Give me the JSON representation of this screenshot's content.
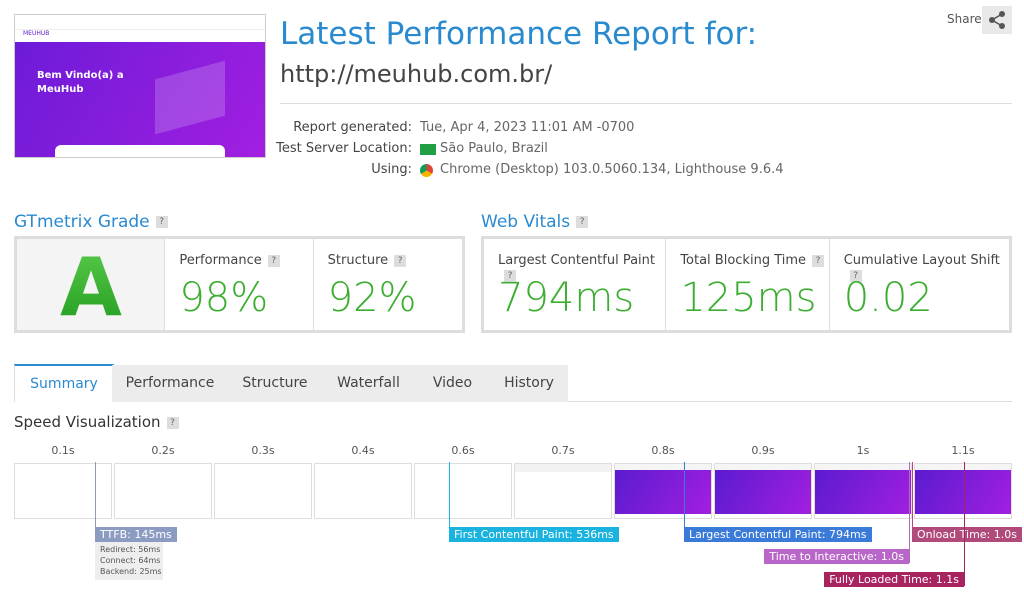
{
  "header": {
    "title": "Latest Performance Report for:",
    "url": "http://meuhub.com.br/",
    "share": "Share",
    "help": "?"
  },
  "thumbnail": {
    "heading": "Bem Vindo(a) a MeuHub",
    "logo": "MEUHUB"
  },
  "report": {
    "rows": [
      {
        "label": "Report generated:",
        "value": "Tue, Apr 4, 2023 11:01 AM -0700"
      },
      {
        "label": "Test Server Location:",
        "value": "São Paulo, Brazil"
      },
      {
        "label": "Using:",
        "value": "Chrome (Desktop) 103.0.5060.134, Lighthouse 9.6.4"
      }
    ]
  },
  "grade": {
    "heading": "GTmetrix Grade",
    "letter": "A",
    "metrics": [
      {
        "label": "Performance",
        "value": "98%"
      },
      {
        "label": "Structure",
        "value": "92%"
      }
    ]
  },
  "web_vitals": {
    "heading": "Web Vitals",
    "metrics": [
      {
        "label": "Largest Contentful Paint",
        "value": "794ms"
      },
      {
        "label": "Total Blocking Time",
        "value": "125ms"
      },
      {
        "label": "Cumulative Layout Shift",
        "value": "0.02"
      }
    ]
  },
  "tabs": [
    "Summary",
    "Performance",
    "Structure",
    "Waterfall",
    "Video",
    "History"
  ],
  "speed": {
    "heading": "Speed Visualization",
    "times": [
      "0.1s",
      "0.2s",
      "0.3s",
      "0.4s",
      "0.6s",
      "0.7s",
      "0.8s",
      "0.9s",
      "1s",
      "1.1s"
    ],
    "markers": [
      "TTFB: 145ms",
      "First Contentful Paint: 536ms",
      "Largest Contentful Paint: 794ms",
      "Time to Interactive: 1.0s",
      "Onload Time: 1.0s",
      "Fully Loaded Time: 1.1s"
    ],
    "ttfb_details": [
      "Redirect: 56ms",
      "Connect: 64ms",
      "Backend: 25ms"
    ]
  }
}
